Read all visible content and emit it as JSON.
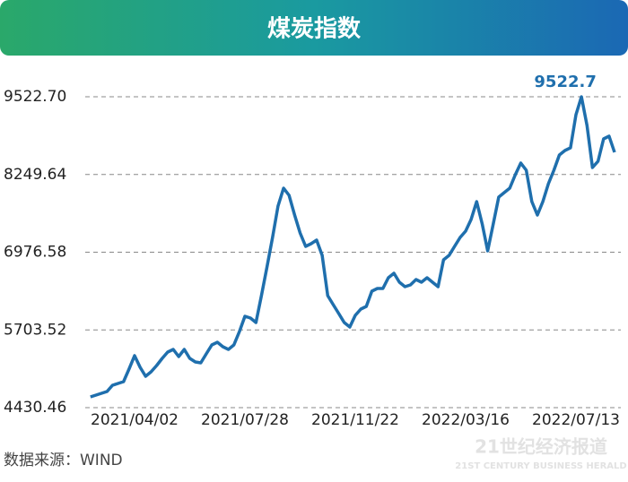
{
  "chart_data": {
    "type": "line",
    "title": "煤炭指数",
    "categories": [
      null,
      null,
      null,
      null,
      null,
      null,
      null,
      null,
      "2021/04/02",
      null,
      null,
      null,
      null,
      null,
      null,
      null,
      null,
      null,
      null,
      null,
      null,
      null,
      null,
      null,
      null,
      null,
      null,
      null,
      "2021/07/28",
      null,
      null,
      null,
      null,
      null,
      null,
      null,
      null,
      null,
      null,
      null,
      null,
      null,
      null,
      null,
      null,
      null,
      null,
      null,
      "2021/11/22",
      null,
      null,
      null,
      null,
      null,
      null,
      null,
      null,
      null,
      null,
      null,
      null,
      null,
      null,
      null,
      null,
      null,
      null,
      null,
      "2022/03/16",
      null,
      null,
      null,
      null,
      null,
      null,
      null,
      null,
      null,
      null,
      null,
      null,
      null,
      null,
      null,
      null,
      null,
      null,
      null,
      "2022/07/13",
      null,
      null,
      null,
      null,
      null,
      null,
      null
    ],
    "values": [
      4606,
      4636,
      4665,
      4695,
      4797,
      4827,
      4856,
      5061,
      5281,
      5091,
      4944,
      5017,
      5120,
      5238,
      5340,
      5384,
      5267,
      5384,
      5238,
      5179,
      5164,
      5311,
      5458,
      5502,
      5428,
      5384,
      5458,
      5678,
      5927,
      5898,
      5824,
      6265,
      6734,
      7219,
      7732,
      8026,
      7908,
      7586,
      7292,
      7072,
      7116,
      7175,
      6925,
      6265,
      6118,
      5971,
      5824,
      5751,
      5942,
      6045,
      6089,
      6338,
      6382,
      6382,
      6558,
      6632,
      6485,
      6412,
      6441,
      6529,
      6485,
      6558,
      6485,
      6412,
      6852,
      6925,
      7072,
      7219,
      7321,
      7512,
      7806,
      7439,
      6999,
      7439,
      7879,
      7952,
      8026,
      8246,
      8437,
      8319,
      7806,
      7586,
      7806,
      8099,
      8319,
      8569,
      8642,
      8686,
      9229,
      9522.7,
      9053,
      8363,
      8466,
      8833,
      8877,
      8613
    ],
    "color": "#1f6fad",
    "peak_label": "9522.7",
    "ylim": [
      4430.46,
      9522.7
    ],
    "yticks": [
      4430.46,
      5703.52,
      6976.58,
      8249.64,
      {
        "value": 9522.7,
        "label": "9522.70"
      }
    ],
    "grid": true,
    "source": "数据来源：WIND",
    "watermark": [
      "21世纪经济报道",
      "21ST CENTURY BUSINESS HERALD"
    ]
  }
}
